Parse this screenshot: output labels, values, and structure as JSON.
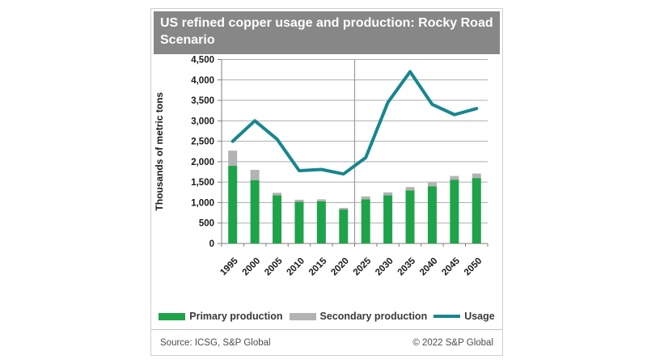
{
  "header": {
    "title": "US refined copper usage and production: Rocky Road Scenario"
  },
  "chart_data": {
    "type": "bar",
    "subtype": "stacked-bars-with-line",
    "categories": [
      "1995",
      "2000",
      "2005",
      "2010",
      "2015",
      "2020",
      "2025",
      "2030",
      "2035",
      "2040",
      "2045",
      "2050"
    ],
    "series": [
      {
        "name": "Primary production",
        "type": "bar",
        "stacked": true,
        "color": "#1fa34a",
        "values": [
          1900,
          1550,
          1180,
          1020,
          1030,
          830,
          1080,
          1180,
          1300,
          1400,
          1560,
          1600
        ]
      },
      {
        "name": "Secondary production",
        "type": "bar",
        "stacked": true,
        "color": "#b3b3b3",
        "values": [
          370,
          250,
          60,
          50,
          50,
          40,
          70,
          70,
          80,
          90,
          90,
          110
        ]
      },
      {
        "name": "Usage",
        "type": "line",
        "color": "#17868e",
        "values": [
          2500,
          3000,
          2550,
          1780,
          1810,
          1700,
          2100,
          3450,
          4200,
          3400,
          3150,
          3300
        ]
      }
    ],
    "title": "US refined copper usage and production: Rocky Road Scenario",
    "xlabel": "",
    "ylabel": "Thousands of metric tons",
    "ylim": [
      0,
      4500
    ],
    "ytick_step": 500,
    "grid": true,
    "divider_after_category": "2020",
    "legend_position": "bottom"
  },
  "colors": {
    "header_bg": "#878787",
    "grid": "#adadad",
    "axis": "#7f7f7f",
    "divider": "#9b9b9b"
  },
  "footer": {
    "source": "Source: ICSG, S&P Global",
    "copyright": "© 2022 S&P Global"
  }
}
